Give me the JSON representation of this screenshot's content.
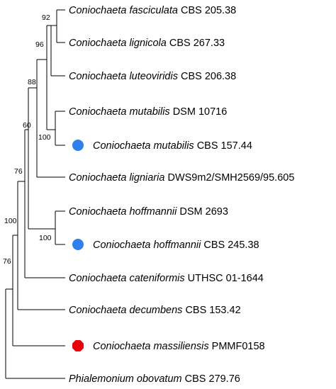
{
  "tree": {
    "taxa": {
      "fasciculata": {
        "genus": "Coniochaeta",
        "species": "fasciculata",
        "strain": "CBS 205.38"
      },
      "lignicola": {
        "genus": "Coniochaeta",
        "species": "lignicola",
        "strain": "CBS 267.33"
      },
      "luteoviridis": {
        "genus": "Coniochaeta",
        "species": "luteoviridis",
        "strain": "CBS 206.38"
      },
      "mutabilis_dsm": {
        "genus": "Coniochaeta",
        "species": "mutabilis",
        "strain": "DSM 10716"
      },
      "mutabilis_cbs": {
        "genus": "Coniochaeta",
        "species": "mutabilis",
        "strain": "CBS 157.44",
        "marker": "circle",
        "marker_color": "#2f80ed"
      },
      "ligniaria": {
        "genus": "Coniochaeta",
        "species": "ligniaria",
        "strain": "DWS9m2/SMH2569/95.605"
      },
      "hoffmannii_dsm": {
        "genus": "Coniochaeta",
        "species": "hoffmannii",
        "strain": "DSM 2693"
      },
      "hoffmannii_cbs": {
        "genus": "Coniochaeta",
        "species": "hoffmannii",
        "strain": "CBS 245.38",
        "marker": "circle",
        "marker_color": "#2f80ed"
      },
      "cateniformis": {
        "genus": "Coniochaeta",
        "species": "cateniformis",
        "strain": "UTHSC 01-1644"
      },
      "decumbens": {
        "genus": "Coniochaeta",
        "species": "decumbens",
        "strain": "CBS 153.42"
      },
      "massiliensis": {
        "genus": "Coniochaeta",
        "species": "massiliensis",
        "strain": "PMMF0158",
        "marker": "octagon",
        "marker_color": "#e8000b"
      },
      "phialemonium": {
        "genus": "Phialemonium",
        "species": "obovatum",
        "strain": "CBS 279.76"
      }
    },
    "bootstrap": {
      "fasciculata_lignicola": "92",
      "plus_luteoviridis": "96",
      "upper_clade": "88",
      "mutabilis_pair": "100",
      "plus_ligniaria": "60",
      "hoffmannii_pair": "100",
      "plus_hoffmannii": "76",
      "plus_cateniformis": "100",
      "plus_decumbens": "76"
    }
  }
}
